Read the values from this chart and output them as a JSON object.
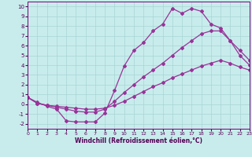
{
  "xlabel": "Windchill (Refroidissement éolien,°C)",
  "bg_color": "#c8ecec",
  "grid_color": "#a8d4d4",
  "line_color": "#993399",
  "xlim": [
    0,
    23
  ],
  "ylim": [
    -2.5,
    10.5
  ],
  "xticks": [
    0,
    1,
    2,
    3,
    4,
    5,
    6,
    7,
    8,
    9,
    10,
    11,
    12,
    13,
    14,
    15,
    16,
    17,
    18,
    19,
    20,
    21,
    22,
    23
  ],
  "yticks": [
    -2,
    -1,
    0,
    1,
    2,
    3,
    4,
    5,
    6,
    7,
    8,
    9,
    10
  ],
  "line1_x": [
    0,
    1,
    2,
    3,
    4,
    5,
    6,
    7,
    8,
    9,
    10,
    11,
    12,
    13,
    14,
    15,
    16,
    17,
    18,
    19,
    20,
    21,
    22,
    23
  ],
  "line1_y": [
    0.7,
    0.2,
    -0.2,
    -0.5,
    -1.7,
    -1.8,
    -1.8,
    -1.8,
    -0.9,
    1.4,
    3.9,
    5.5,
    6.3,
    7.5,
    8.2,
    9.8,
    9.3,
    9.8,
    9.5,
    8.2,
    7.8,
    6.5,
    5.0,
    4.0
  ],
  "line2_x": [
    0,
    1,
    2,
    3,
    4,
    5,
    6,
    7,
    8,
    9,
    10,
    11,
    12,
    13,
    14,
    15,
    16,
    17,
    18,
    19,
    20,
    21,
    22,
    23
  ],
  "line2_y": [
    0.7,
    0.1,
    -0.1,
    -0.3,
    -0.5,
    -0.7,
    -0.8,
    -0.8,
    -0.5,
    0.3,
    1.2,
    2.0,
    2.8,
    3.5,
    4.2,
    5.0,
    5.8,
    6.5,
    7.2,
    7.5,
    7.5,
    6.5,
    5.5,
    4.5
  ],
  "line3_x": [
    0,
    1,
    2,
    3,
    4,
    5,
    6,
    7,
    8,
    9,
    10,
    11,
    12,
    13,
    14,
    15,
    16,
    17,
    18,
    19,
    20,
    21,
    22,
    23
  ],
  "line3_y": [
    0.7,
    0.1,
    -0.1,
    -0.2,
    -0.3,
    -0.4,
    -0.5,
    -0.5,
    -0.4,
    -0.1,
    0.3,
    0.8,
    1.3,
    1.8,
    2.2,
    2.7,
    3.1,
    3.5,
    3.9,
    4.2,
    4.5,
    4.2,
    3.8,
    3.5
  ]
}
